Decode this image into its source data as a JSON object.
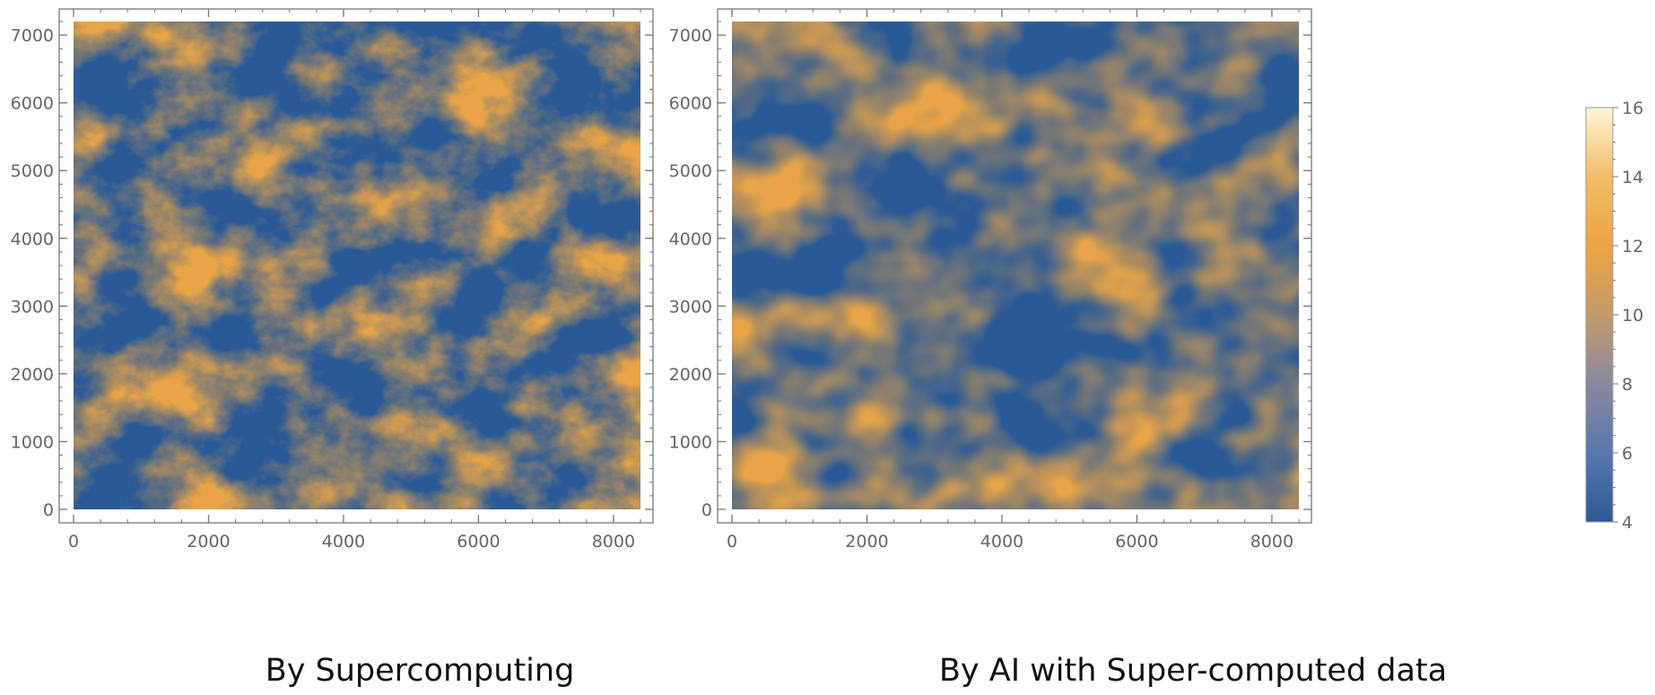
{
  "chart_data": [
    {
      "type": "heatmap",
      "title": "",
      "caption": "By Supercomputing",
      "xlabel": "",
      "ylabel": "",
      "xlim": [
        0,
        8400
      ],
      "ylim": [
        0,
        7200
      ],
      "x_ticks": [
        0,
        2000,
        4000,
        6000,
        8000
      ],
      "y_ticks": [
        0,
        1000,
        2000,
        3000,
        4000,
        5000,
        6000,
        7000
      ],
      "x_tick_labels": [
        "0",
        "2000",
        "4000",
        "6000",
        "8000"
      ],
      "y_tick_labels": [
        "0",
        "1000",
        "2000",
        "3000",
        "4000",
        "5000",
        "6000",
        "7000"
      ],
      "texture": "fine-grained, noisy",
      "grid": false
    },
    {
      "type": "heatmap",
      "title": "",
      "caption": "By AI with Super-computed data",
      "xlabel": "",
      "ylabel": "",
      "xlim": [
        0,
        8400
      ],
      "ylim": [
        0,
        7200
      ],
      "x_ticks": [
        0,
        2000,
        4000,
        6000,
        8000
      ],
      "y_ticks": [
        0,
        1000,
        2000,
        3000,
        4000,
        5000,
        6000,
        7000
      ],
      "x_tick_labels": [
        "0",
        "2000",
        "4000",
        "6000",
        "8000"
      ],
      "y_tick_labels": [
        "0",
        "1000",
        "2000",
        "3000",
        "4000",
        "5000",
        "6000",
        "7000"
      ],
      "texture": "smooth",
      "grid": false
    }
  ],
  "colorbar": {
    "range": [
      4,
      16
    ],
    "ticks": [
      4,
      6,
      8,
      10,
      12,
      14,
      16
    ],
    "tick_labels": [
      "4",
      "6",
      "8",
      "10",
      "12",
      "14",
      "16"
    ],
    "colors": [
      "#2a5a96",
      "#5878ae",
      "#8a88a0",
      "#c49a6a",
      "#eea442",
      "#f2bd6a",
      "#fff4d8"
    ]
  },
  "colors": {
    "axis": "#777777",
    "tick_label": "#666666",
    "caption": "#111111"
  }
}
